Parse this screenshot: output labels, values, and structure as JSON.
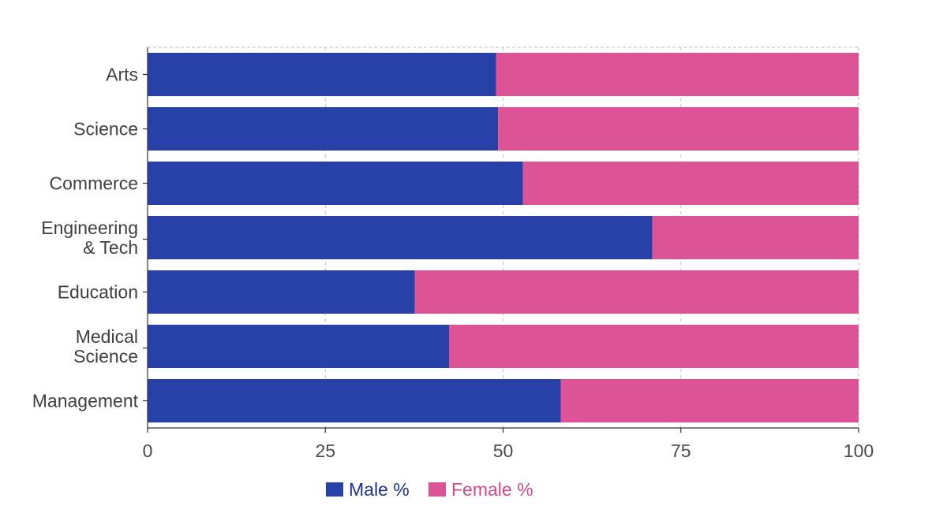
{
  "chart_data": {
    "type": "bar",
    "orientation": "horizontal",
    "stacked": true,
    "categories": [
      "Arts",
      "Science",
      "Commerce",
      "Engineering & Tech",
      "Education",
      "Medical Science",
      "Management"
    ],
    "category_lines": [
      [
        "Arts"
      ],
      [
        "Science"
      ],
      [
        "Commerce"
      ],
      [
        "Engineering",
        "& Tech"
      ],
      [
        "Education"
      ],
      [
        "Medical",
        "Science"
      ],
      [
        "Management"
      ]
    ],
    "series": [
      {
        "name": "Male %",
        "color": "#2841a8",
        "values": [
          49,
          49.3,
          52.8,
          71,
          37.6,
          42.4,
          58.1
        ]
      },
      {
        "name": "Female %",
        "color": "#dc5495",
        "values": [
          51,
          50.7,
          47.2,
          29,
          62.4,
          57.6,
          41.9
        ]
      }
    ],
    "xlim": [
      0,
      100
    ],
    "xticks": [
      "0",
      "25",
      "50",
      "75",
      "100"
    ],
    "grid": true,
    "legend_position": "bottom-center",
    "title": "",
    "xlabel": "",
    "ylabel": ""
  }
}
